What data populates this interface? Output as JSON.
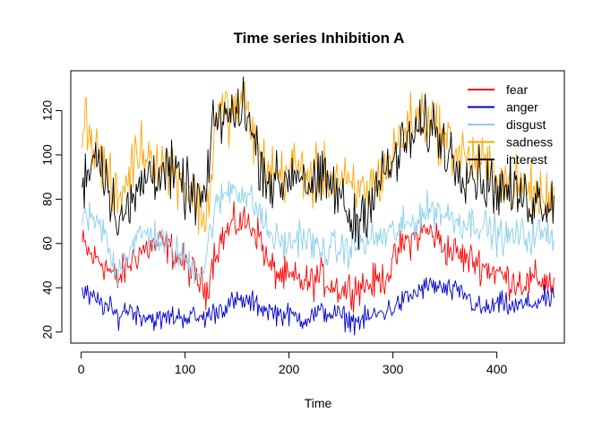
{
  "chart_data": {
    "type": "line",
    "title": "Time series Inhibition A",
    "xlabel": "Time",
    "ylabel": "",
    "xlim": [
      -10,
      465
    ],
    "ylim": [
      15,
      138
    ],
    "xticks": [
      0,
      100,
      200,
      300,
      400
    ],
    "yticks": [
      20,
      40,
      60,
      80,
      100,
      120
    ],
    "legend_position": "top-right",
    "grid": false,
    "n_points": 455,
    "series": [
      {
        "name": "fear",
        "color": "#FF0000",
        "anchors": [
          [
            1,
            60
          ],
          [
            10,
            54
          ],
          [
            20,
            52
          ],
          [
            30,
            46
          ],
          [
            35,
            43
          ],
          [
            45,
            50
          ],
          [
            55,
            56
          ],
          [
            65,
            58
          ],
          [
            75,
            60
          ],
          [
            85,
            58
          ],
          [
            95,
            53
          ],
          [
            105,
            48
          ],
          [
            115,
            42
          ],
          [
            120,
            38
          ],
          [
            128,
            55
          ],
          [
            135,
            62
          ],
          [
            145,
            68
          ],
          [
            155,
            70
          ],
          [
            165,
            68
          ],
          [
            172,
            63
          ],
          [
            180,
            50
          ],
          [
            190,
            46
          ],
          [
            200,
            44
          ],
          [
            210,
            43
          ],
          [
            220,
            42
          ],
          [
            230,
            45
          ],
          [
            240,
            42
          ],
          [
            250,
            39
          ],
          [
            260,
            40
          ],
          [
            270,
            41
          ],
          [
            280,
            42
          ],
          [
            290,
            44
          ],
          [
            300,
            50
          ],
          [
            305,
            56
          ],
          [
            310,
            60
          ],
          [
            320,
            62
          ],
          [
            330,
            66
          ],
          [
            340,
            64
          ],
          [
            350,
            58
          ],
          [
            360,
            56
          ],
          [
            370,
            53
          ],
          [
            380,
            52
          ],
          [
            390,
            49
          ],
          [
            400,
            47
          ],
          [
            410,
            44
          ],
          [
            420,
            43
          ],
          [
            430,
            42
          ],
          [
            440,
            44
          ],
          [
            450,
            43
          ],
          [
            455,
            41
          ]
        ]
      },
      {
        "name": "anger",
        "color": "#0000CD",
        "anchors": [
          [
            1,
            38
          ],
          [
            10,
            35
          ],
          [
            20,
            33
          ],
          [
            28,
            30
          ],
          [
            35,
            27
          ],
          [
            45,
            31
          ],
          [
            55,
            28
          ],
          [
            65,
            27
          ],
          [
            75,
            25
          ],
          [
            85,
            27
          ],
          [
            95,
            27
          ],
          [
            105,
            27
          ],
          [
            115,
            26
          ],
          [
            125,
            28
          ],
          [
            135,
            31
          ],
          [
            145,
            33
          ],
          [
            155,
            34
          ],
          [
            165,
            33
          ],
          [
            175,
            31
          ],
          [
            185,
            29
          ],
          [
            195,
            28
          ],
          [
            205,
            27
          ],
          [
            215,
            26
          ],
          [
            225,
            28
          ],
          [
            235,
            29
          ],
          [
            245,
            28
          ],
          [
            255,
            26
          ],
          [
            262,
            25
          ],
          [
            270,
            25
          ],
          [
            280,
            27
          ],
          [
            290,
            29
          ],
          [
            300,
            31
          ],
          [
            310,
            34
          ],
          [
            320,
            37
          ],
          [
            330,
            40
          ],
          [
            340,
            41
          ],
          [
            350,
            39
          ],
          [
            360,
            38
          ],
          [
            370,
            37
          ],
          [
            375,
            34
          ],
          [
            385,
            30
          ],
          [
            395,
            31
          ],
          [
            405,
            33
          ],
          [
            415,
            31
          ],
          [
            425,
            32
          ],
          [
            435,
            33
          ],
          [
            445,
            35
          ],
          [
            455,
            34
          ]
        ]
      },
      {
        "name": "disgust",
        "color": "#87CEEB",
        "anchors": [
          [
            1,
            74
          ],
          [
            10,
            69
          ],
          [
            20,
            67
          ],
          [
            30,
            52
          ],
          [
            35,
            47
          ],
          [
            40,
            53
          ],
          [
            50,
            60
          ],
          [
            60,
            64
          ],
          [
            70,
            64
          ],
          [
            80,
            60
          ],
          [
            90,
            56
          ],
          [
            100,
            53
          ],
          [
            110,
            49
          ],
          [
            118,
            48
          ],
          [
            125,
            68
          ],
          [
            130,
            76
          ],
          [
            140,
            84
          ],
          [
            148,
            86
          ],
          [
            155,
            83
          ],
          [
            165,
            78
          ],
          [
            172,
            74
          ],
          [
            180,
            65
          ],
          [
            190,
            61
          ],
          [
            200,
            59
          ],
          [
            210,
            64
          ],
          [
            220,
            61
          ],
          [
            230,
            56
          ],
          [
            240,
            58
          ],
          [
            250,
            57
          ],
          [
            260,
            58
          ],
          [
            270,
            60
          ],
          [
            280,
            62
          ],
          [
            290,
            63
          ],
          [
            300,
            65
          ],
          [
            310,
            67
          ],
          [
            320,
            70
          ],
          [
            330,
            74
          ],
          [
            340,
            76
          ],
          [
            350,
            73
          ],
          [
            360,
            71
          ],
          [
            370,
            69
          ],
          [
            380,
            70
          ],
          [
            390,
            67
          ],
          [
            400,
            64
          ],
          [
            410,
            62
          ],
          [
            420,
            64
          ],
          [
            430,
            63
          ],
          [
            440,
            65
          ],
          [
            450,
            63
          ],
          [
            455,
            64
          ]
        ]
      },
      {
        "name": "sadness",
        "color": "#FFA500",
        "anchors": [
          [
            1,
            112
          ],
          [
            5,
            118
          ],
          [
            12,
            104
          ],
          [
            20,
            98
          ],
          [
            28,
            85
          ],
          [
            35,
            78
          ],
          [
            45,
            90
          ],
          [
            55,
            103
          ],
          [
            65,
            101
          ],
          [
            75,
            97
          ],
          [
            85,
            94
          ],
          [
            95,
            91
          ],
          [
            105,
            84
          ],
          [
            115,
            75
          ],
          [
            120,
            70
          ],
          [
            125,
            90
          ],
          [
            130,
            118
          ],
          [
            140,
            120
          ],
          [
            148,
            118
          ],
          [
            155,
            126
          ],
          [
            162,
            116
          ],
          [
            172,
            99
          ],
          [
            182,
            93
          ],
          [
            192,
            90
          ],
          [
            202,
            95
          ],
          [
            212,
            94
          ],
          [
            222,
            88
          ],
          [
            232,
            92
          ],
          [
            242,
            90
          ],
          [
            252,
            88
          ],
          [
            262,
            82
          ],
          [
            270,
            84
          ],
          [
            280,
            86
          ],
          [
            290,
            92
          ],
          [
            300,
            100
          ],
          [
            310,
            110
          ],
          [
            318,
            115
          ],
          [
            328,
            118
          ],
          [
            338,
            116
          ],
          [
            348,
            108
          ],
          [
            358,
            103
          ],
          [
            368,
            100
          ],
          [
            378,
            98
          ],
          [
            388,
            95
          ],
          [
            398,
            92
          ],
          [
            408,
            88
          ],
          [
            418,
            86
          ],
          [
            428,
            85
          ],
          [
            438,
            82
          ],
          [
            448,
            80
          ],
          [
            455,
            80
          ]
        ]
      },
      {
        "name": "interest",
        "color": "#000000",
        "anchors": [
          [
            1,
            86
          ],
          [
            6,
            94
          ],
          [
            14,
            101
          ],
          [
            20,
            98
          ],
          [
            28,
            82
          ],
          [
            35,
            74
          ],
          [
            45,
            73
          ],
          [
            55,
            84
          ],
          [
            65,
            92
          ],
          [
            75,
            93
          ],
          [
            85,
            92
          ],
          [
            95,
            88
          ],
          [
            105,
            82
          ],
          [
            115,
            80
          ],
          [
            120,
            80
          ],
          [
            125,
            105
          ],
          [
            130,
            116
          ],
          [
            140,
            118
          ],
          [
            148,
            116
          ],
          [
            155,
            127
          ],
          [
            162,
            113
          ],
          [
            172,
            98
          ],
          [
            182,
            88
          ],
          [
            192,
            86
          ],
          [
            202,
            92
          ],
          [
            212,
            93
          ],
          [
            222,
            84
          ],
          [
            232,
            88
          ],
          [
            242,
            86
          ],
          [
            252,
            78
          ],
          [
            262,
            68
          ],
          [
            270,
            73
          ],
          [
            280,
            82
          ],
          [
            290,
            90
          ],
          [
            300,
            96
          ],
          [
            310,
            104
          ],
          [
            318,
            108
          ],
          [
            328,
            112
          ],
          [
            338,
            113
          ],
          [
            348,
            106
          ],
          [
            358,
            98
          ],
          [
            368,
            94
          ],
          [
            378,
            92
          ],
          [
            388,
            88
          ],
          [
            398,
            86
          ],
          [
            408,
            84
          ],
          [
            418,
            82
          ],
          [
            428,
            80
          ],
          [
            438,
            80
          ],
          [
            448,
            79
          ],
          [
            455,
            79
          ]
        ]
      }
    ]
  }
}
